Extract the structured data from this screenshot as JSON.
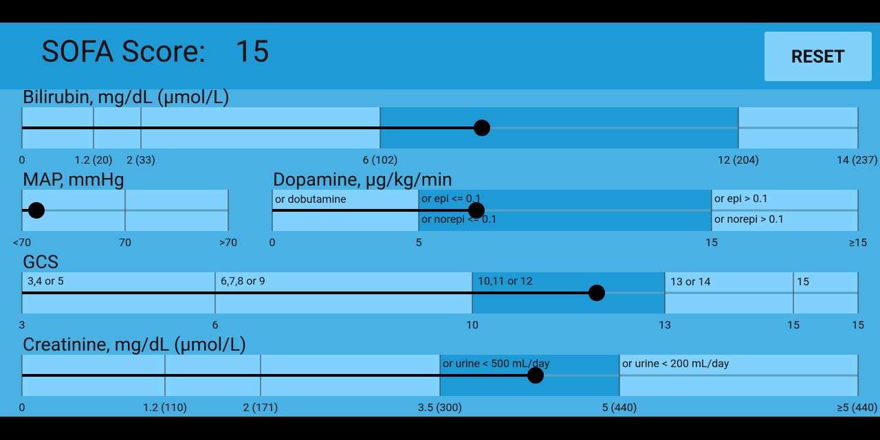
{
  "header": {
    "title": "SOFA Score:",
    "score": "15",
    "reset_button": "RESET"
  },
  "sliders": [
    {
      "label": "Bilirubin, mg/dL (µmol/L)",
      "segment_labels": [],
      "tick_labels": [
        "0",
        "1.2 (20)",
        "2 (33)",
        "6 (102)",
        "12 (204)",
        "14 (237)"
      ]
    },
    {
      "label": "MAP, mmHg",
      "segment_labels": [],
      "tick_labels": [
        "<70",
        "70",
        ">70"
      ]
    },
    {
      "label": "Dopamine, µg/kg/min",
      "segment_labels": [
        "or dobutamine",
        "or epi <= 0.1",
        "or norepi <= 0.1",
        "or epi > 0.1",
        "or norepi > 0.1"
      ],
      "tick_labels": [
        "0",
        "5",
        "15",
        "≥15"
      ]
    },
    {
      "label": "GCS",
      "segment_labels": [
        "3,4 or 5",
        "6,7,8 or 9",
        "10,11 or 12",
        "13 or 14",
        "15"
      ],
      "tick_labels": [
        "3",
        "6",
        "10",
        "13",
        "15",
        "15"
      ]
    },
    {
      "label": "Creatinine, mg/dL (µmol/L)",
      "segment_labels": [
        "or urine < 500 mL/day",
        "or urine < 200 mL/day"
      ],
      "tick_labels": [
        "0",
        "1.2 (110)",
        "2 (171)",
        "3.5 (300)",
        "5 (440)",
        "≥5 (440)"
      ]
    }
  ]
}
